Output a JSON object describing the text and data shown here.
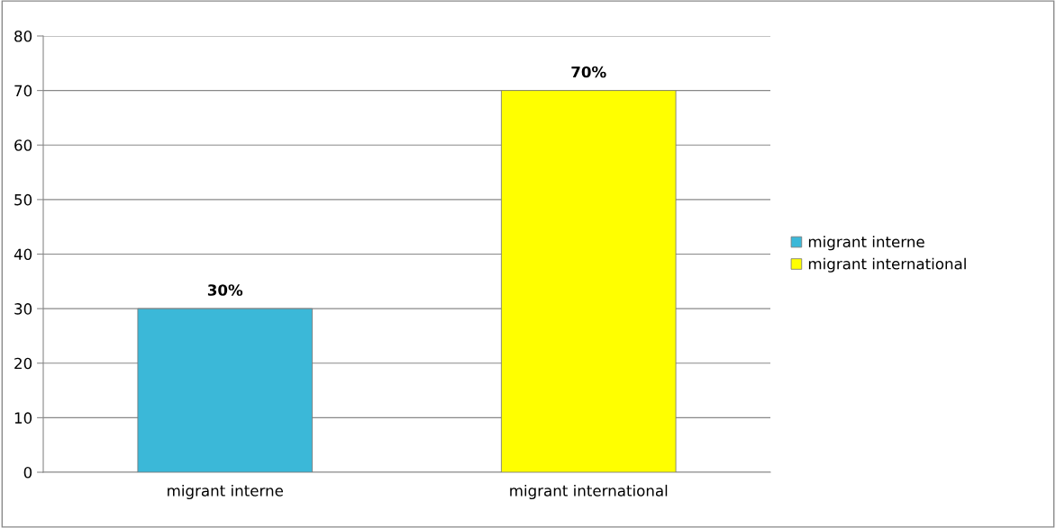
{
  "chart_data": {
    "type": "bar",
    "categories": [
      "migrant interne",
      "migrant international"
    ],
    "series": [
      {
        "name": "migrant interne",
        "color": "#3bb8d8",
        "values": [
          30,
          null
        ],
        "value_labels": [
          "30%",
          null
        ]
      },
      {
        "name": "migrant international",
        "color": "#ffff00",
        "values": [
          null,
          70
        ],
        "value_labels": [
          null,
          "70%"
        ]
      }
    ],
    "stacked": true,
    "ylim": [
      0,
      80
    ],
    "yticks": [
      0,
      10,
      20,
      30,
      40,
      50,
      60,
      70,
      80
    ],
    "grid": "y",
    "legend": "right"
  }
}
